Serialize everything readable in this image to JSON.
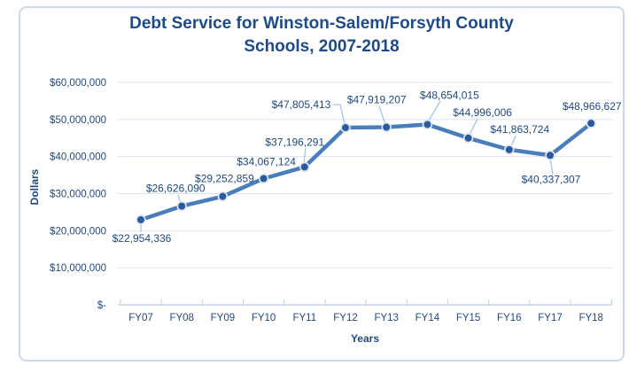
{
  "chart_data": {
    "type": "line",
    "title": "Debt Service for Winston-Salem/Forsyth County Schools, 2007-2018",
    "title_lines": [
      "Debt Service for Winston-Salem/Forsyth County",
      "Schools, 2007-2018"
    ],
    "xlabel": "Years",
    "ylabel": "Dollars",
    "categories": [
      "FY07",
      "FY08",
      "FY09",
      "FY10",
      "FY11",
      "FY12",
      "FY13",
      "FY14",
      "FY15",
      "FY16",
      "FY17",
      "FY18"
    ],
    "values": [
      22954336,
      26626090,
      29252859,
      34067124,
      37196291,
      47805413,
      47919207,
      48654015,
      44996006,
      41863724,
      40337307,
      48966627
    ],
    "data_labels": [
      "$22,954,336",
      "$26,626,090",
      "$29,252,859",
      "$34,067,124",
      "$37,196,291",
      "$47,805,413",
      "$47,919,207",
      "$48,654,015",
      "$44,996,006",
      "$41,863,724",
      "$40,337,307",
      "$48,966,627"
    ],
    "y_ticks": [
      "$-",
      "$10,000,000",
      "$20,000,000",
      "$30,000,000",
      "$40,000,000",
      "$50,000,000",
      "$60,000,000"
    ],
    "ylim": [
      0,
      60000000
    ],
    "grid": true,
    "legend": false
  },
  "colors": {
    "line": "#4a7ebb",
    "marker_fill": "#2a5a9e",
    "marker_ring": "#dde5f0",
    "grid": "#dbe5f1",
    "axis": "#b9cde5",
    "leader": "#a5c4e7",
    "text": "#23497e",
    "title_text": "#1e4a86",
    "frame_border": "#cdd9ea",
    "background": "#ffffff"
  }
}
